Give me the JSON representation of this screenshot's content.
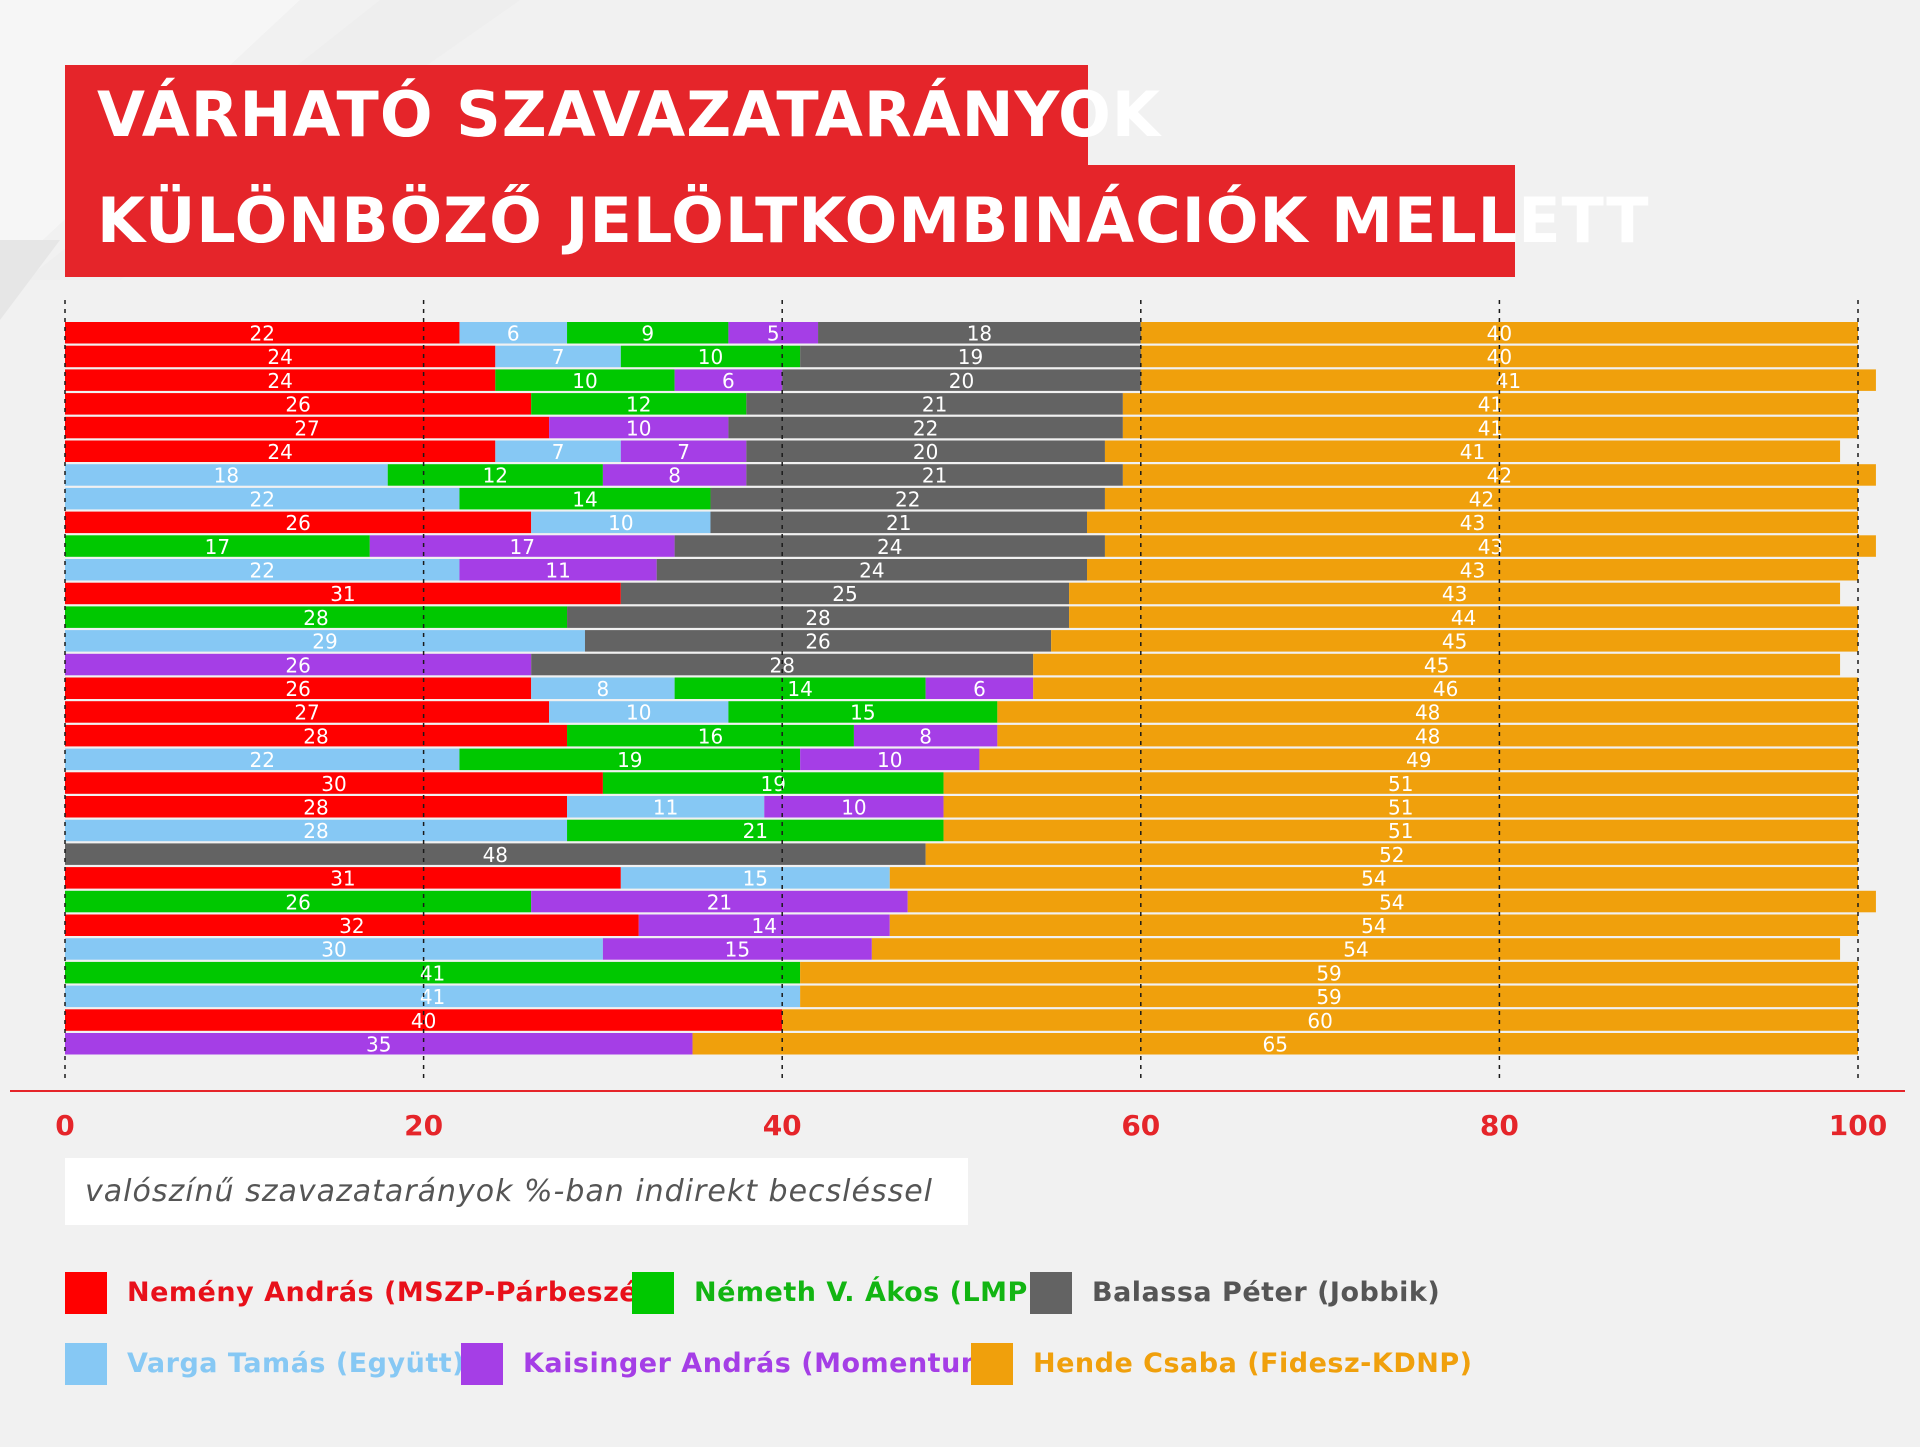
{
  "title": {
    "line1": "VÁRHATÓ SZAVAZATARÁNYOK",
    "line2": "KÜLÖNBÖZŐ JELÖLTKOMBINÁCIÓK MELLETT"
  },
  "note": "valószínű szavazatarányok %-ban indirekt becsléssel",
  "colors": {
    "background": "#f1f1f1",
    "title_bg": "#e5252a",
    "axis": "#e5252a",
    "tick_label": "#e5252a"
  },
  "legend": [
    {
      "key": "nemeny",
      "label": "Nemény András (MSZP-Párbeszéd)",
      "color": "#ff0000",
      "text_color": "#e8101a"
    },
    {
      "key": "nemeth",
      "label": "Németh V. Ákos (LMP)",
      "color": "#00c800",
      "text_color": "#12b512"
    },
    {
      "key": "balassa",
      "label": "Balassa Péter (Jobbik)",
      "color": "#636363",
      "text_color": "#555555"
    },
    {
      "key": "varga",
      "label": "Varga Tamás (Együtt)",
      "color": "#86c8f4",
      "text_color": "#86c8f4"
    },
    {
      "key": "kaisinger",
      "label": "Kaisinger András (Momentum)",
      "color": "#a53ee6",
      "text_color": "#a53ee6"
    },
    {
      "key": "hende",
      "label": "Hende Csaba (Fidesz-KDNP)",
      "color": "#f0a00c",
      "text_color": "#f0a00c"
    }
  ],
  "chart_data": {
    "type": "bar",
    "orientation": "horizontal",
    "stacked": true,
    "xlim": [
      0,
      100
    ],
    "x_ticks": [
      "0",
      "20",
      "40",
      "60",
      "80",
      "100"
    ],
    "gridlines": "dashed vertical at ticks",
    "series_colors": {
      "nemeny": "#ff0000",
      "varga": "#86c8f4",
      "nemeth": "#00c800",
      "kaisinger": "#a53ee6",
      "balassa": "#636363",
      "hende": "#f0a00c"
    },
    "rows": [
      [
        [
          "nemeny",
          22
        ],
        [
          "varga",
          6
        ],
        [
          "nemeth",
          9
        ],
        [
          "kaisinger",
          5
        ],
        [
          "balassa",
          18
        ],
        [
          "hende",
          40
        ]
      ],
      [
        [
          "nemeny",
          24
        ],
        [
          "varga",
          7
        ],
        [
          "nemeth",
          10
        ],
        [
          "balassa",
          19
        ],
        [
          "hende",
          40
        ]
      ],
      [
        [
          "nemeny",
          24
        ],
        [
          "nemeth",
          10
        ],
        [
          "kaisinger",
          6
        ],
        [
          "balassa",
          20
        ],
        [
          "hende",
          41
        ]
      ],
      [
        [
          "nemeny",
          26
        ],
        [
          "nemeth",
          12
        ],
        [
          "balassa",
          21
        ],
        [
          "hende",
          41
        ]
      ],
      [
        [
          "nemeny",
          27
        ],
        [
          "kaisinger",
          10
        ],
        [
          "balassa",
          22
        ],
        [
          "hende",
          41
        ]
      ],
      [
        [
          "nemeny",
          24
        ],
        [
          "varga",
          7
        ],
        [
          "kaisinger",
          7
        ],
        [
          "balassa",
          20
        ],
        [
          "hende",
          41
        ]
      ],
      [
        [
          "varga",
          18
        ],
        [
          "nemeth",
          12
        ],
        [
          "kaisinger",
          8
        ],
        [
          "balassa",
          21
        ],
        [
          "hende",
          42
        ]
      ],
      [
        [
          "varga",
          22
        ],
        [
          "nemeth",
          14
        ],
        [
          "balassa",
          22
        ],
        [
          "hende",
          42
        ]
      ],
      [
        [
          "nemeny",
          26
        ],
        [
          "varga",
          10
        ],
        [
          "balassa",
          21
        ],
        [
          "hende",
          43
        ]
      ],
      [
        [
          "nemeth",
          17
        ],
        [
          "kaisinger",
          17
        ],
        [
          "balassa",
          24
        ],
        [
          "hende",
          43
        ]
      ],
      [
        [
          "varga",
          22
        ],
        [
          "kaisinger",
          11
        ],
        [
          "balassa",
          24
        ],
        [
          "hende",
          43
        ]
      ],
      [
        [
          "nemeny",
          31
        ],
        [
          "balassa",
          25
        ],
        [
          "hende",
          43
        ]
      ],
      [
        [
          "nemeth",
          28
        ],
        [
          "balassa",
          28
        ],
        [
          "hende",
          44
        ]
      ],
      [
        [
          "varga",
          29
        ],
        [
          "balassa",
          26
        ],
        [
          "hende",
          45
        ]
      ],
      [
        [
          "kaisinger",
          26
        ],
        [
          "balassa",
          28
        ],
        [
          "hende",
          45
        ]
      ],
      [
        [
          "nemeny",
          26
        ],
        [
          "varga",
          8
        ],
        [
          "nemeth",
          14
        ],
        [
          "kaisinger",
          6
        ],
        [
          "hende",
          46
        ]
      ],
      [
        [
          "nemeny",
          27
        ],
        [
          "varga",
          10
        ],
        [
          "nemeth",
          15
        ],
        [
          "hende",
          48
        ]
      ],
      [
        [
          "nemeny",
          28
        ],
        [
          "nemeth",
          16
        ],
        [
          "kaisinger",
          8
        ],
        [
          "hende",
          48
        ]
      ],
      [
        [
          "varga",
          22
        ],
        [
          "nemeth",
          19
        ],
        [
          "kaisinger",
          10
        ],
        [
          "hende",
          49
        ]
      ],
      [
        [
          "nemeny",
          30
        ],
        [
          "nemeth",
          19
        ],
        [
          "hende",
          51
        ]
      ],
      [
        [
          "nemeny",
          28
        ],
        [
          "varga",
          11
        ],
        [
          "kaisinger",
          10
        ],
        [
          "hende",
          51
        ]
      ],
      [
        [
          "varga",
          28
        ],
        [
          "nemeth",
          21
        ],
        [
          "hende",
          51
        ]
      ],
      [
        [
          "balassa",
          48
        ],
        [
          "hende",
          52
        ]
      ],
      [
        [
          "nemeny",
          31
        ],
        [
          "varga",
          15
        ],
        [
          "hende",
          54
        ]
      ],
      [
        [
          "nemeth",
          26
        ],
        [
          "kaisinger",
          21
        ],
        [
          "hende",
          54
        ]
      ],
      [
        [
          "nemeny",
          32
        ],
        [
          "kaisinger",
          14
        ],
        [
          "hende",
          54
        ]
      ],
      [
        [
          "varga",
          30
        ],
        [
          "kaisinger",
          15
        ],
        [
          "hende",
          54
        ]
      ],
      [
        [
          "nemeth",
          41
        ],
        [
          "hende",
          59
        ]
      ],
      [
        [
          "varga",
          41
        ],
        [
          "hende",
          59
        ]
      ],
      [
        [
          "nemeny",
          40
        ],
        [
          "hende",
          60
        ]
      ],
      [
        [
          "kaisinger",
          35
        ],
        [
          "hende",
          65
        ]
      ]
    ]
  }
}
